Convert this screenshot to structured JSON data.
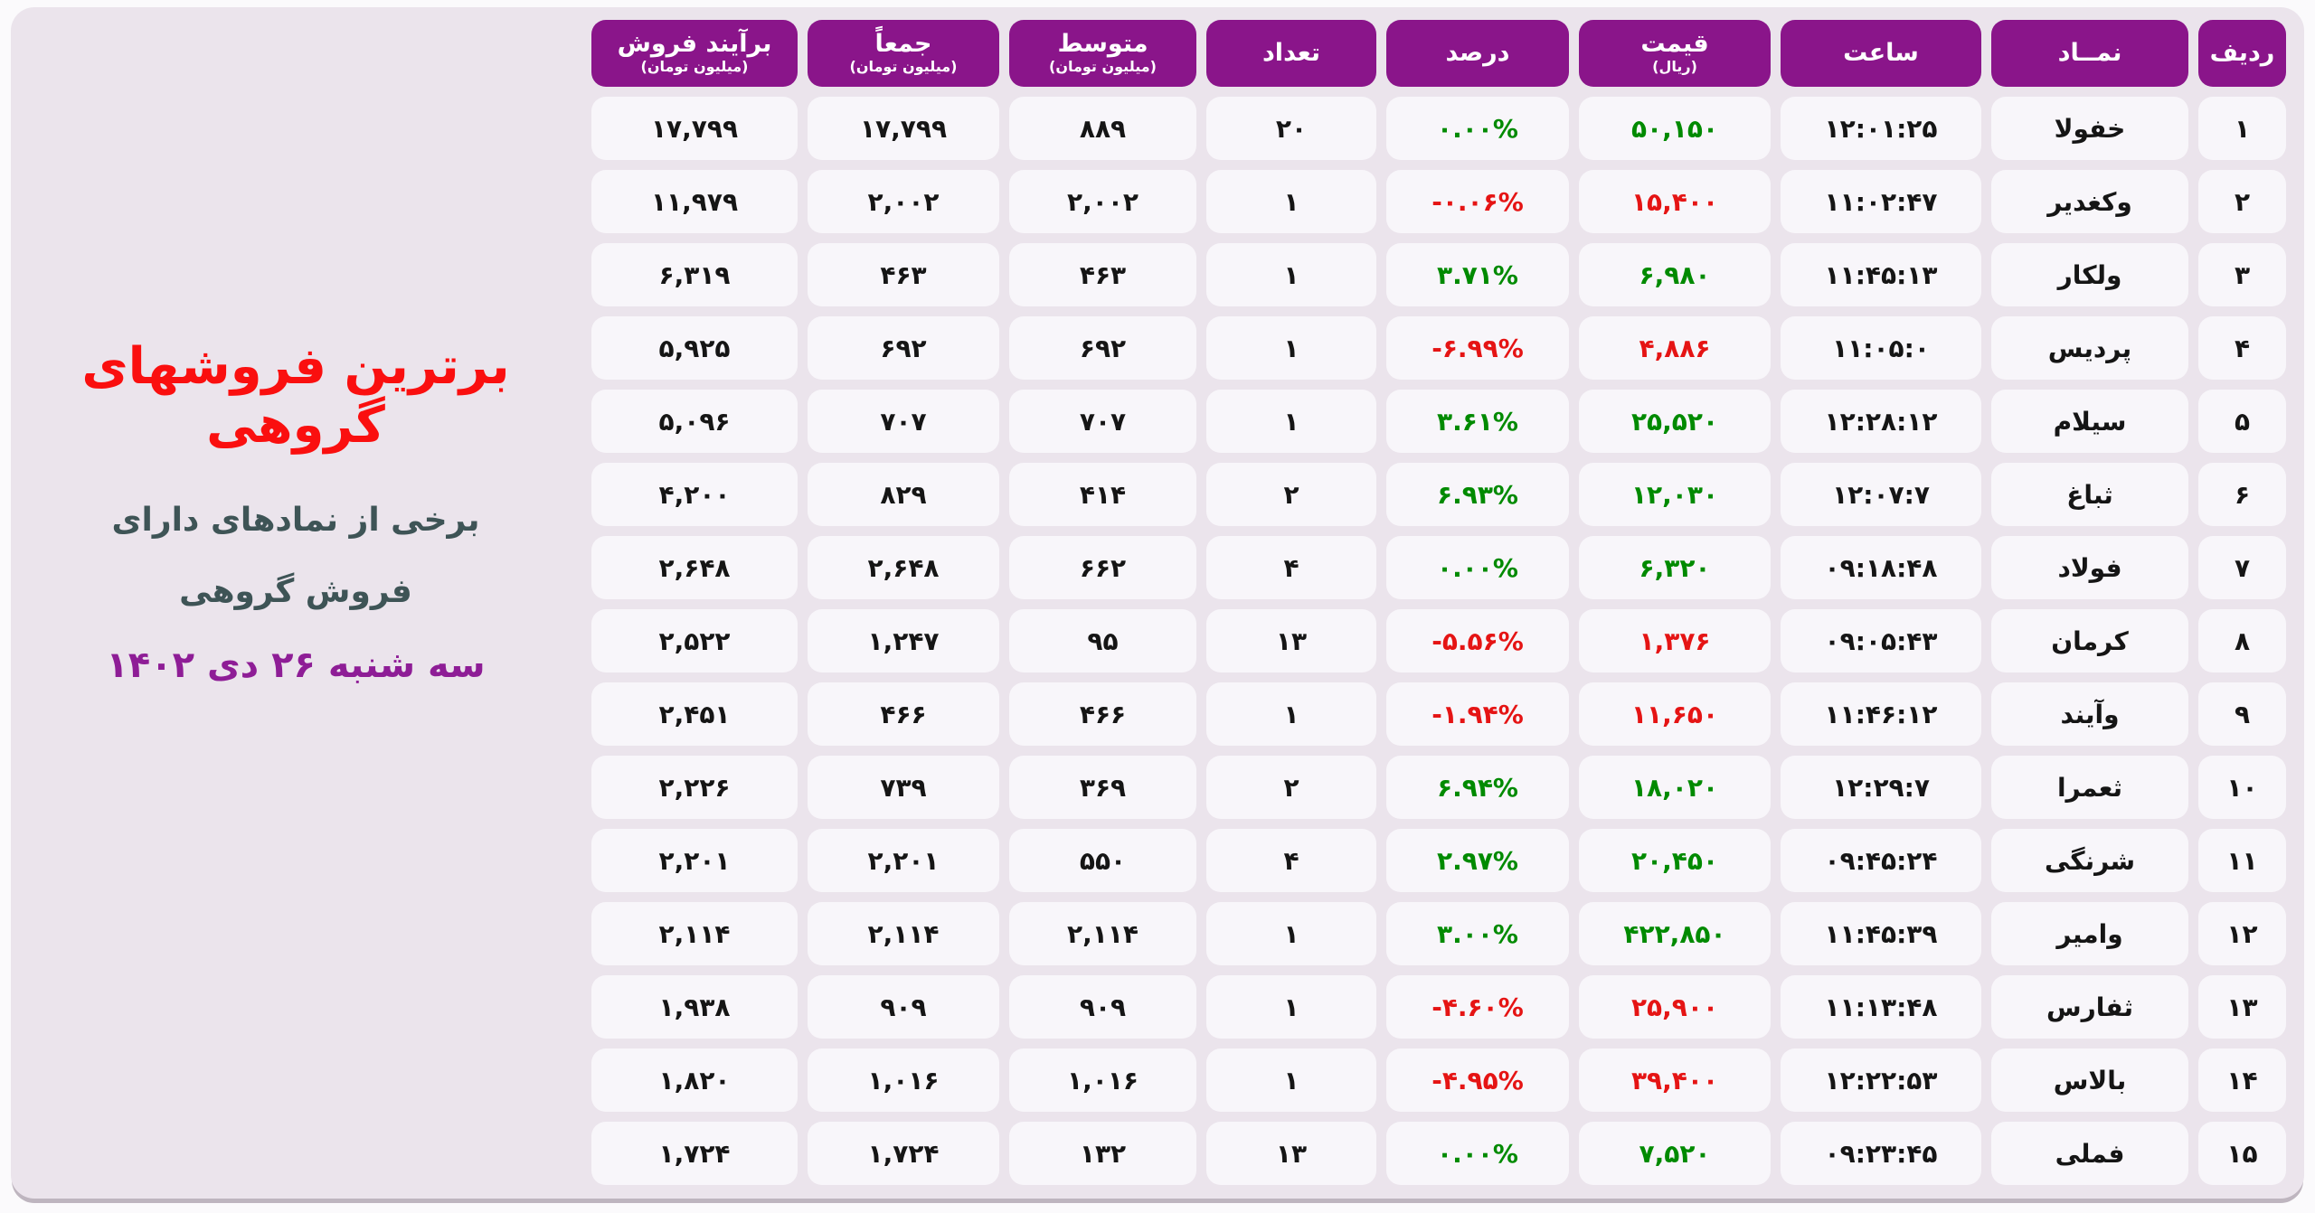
{
  "title_block": {
    "title": "برترین فروشهای گروهی",
    "subtitle_lines": [
      "برخی از نمادهای دارای",
      "فروش گروهی"
    ],
    "date": "سه شنبه ۲۶ دی ۱۴۰۲"
  },
  "colors": {
    "header_purple": "#8a158a",
    "green": "#008a00",
    "red": "#e51414",
    "board_bg": "#ebe4ec",
    "cell_bg": "#f8f6fa",
    "ink": "#151515",
    "title_red": "#fa0f0f",
    "subtitle_teal": "#3e5456",
    "date_purple": "#8e1d96"
  },
  "chart_data": {
    "type": "table",
    "title": "برترین فروشهای گروهی",
    "columns": [
      {
        "key": "radif",
        "label": "ردیف",
        "sub": ""
      },
      {
        "key": "namad",
        "label": "نمــاد",
        "sub": ""
      },
      {
        "key": "saat",
        "label": "ساعت",
        "sub": ""
      },
      {
        "key": "gheymat",
        "label": "قیمت",
        "sub": "(ریال)"
      },
      {
        "key": "darsad",
        "label": "درصد",
        "sub": ""
      },
      {
        "key": "tedad",
        "label": "تعداد",
        "sub": ""
      },
      {
        "key": "motavaset",
        "label": "متوسط",
        "sub": "(میلیون تومان)"
      },
      {
        "key": "jaman",
        "label": "جمعاً",
        "sub": "(میلیون تومان)"
      },
      {
        "key": "baraiand",
        "label": "برآیند فروش",
        "sub": "(میلیون تومان)"
      }
    ],
    "rows": [
      {
        "radif": "۱",
        "namad": "خفولا",
        "saat": "۱۲:۰۱:۲۵",
        "gheymat": "۵۰,۱۵۰",
        "price_trend": "up",
        "darsad": "۰.۰۰%",
        "percent_trend": "up",
        "tedad": "۲۰",
        "motavaset": "۸۸۹",
        "jaman": "۱۷,۷۹۹",
        "baraiand": "۱۷,۷۹۹"
      },
      {
        "radif": "۲",
        "namad": "وکغدیر",
        "saat": "۱۱:۰۲:۴۷",
        "gheymat": "۱۵,۴۰۰",
        "price_trend": "down",
        "darsad": "-۰.۰۶%",
        "percent_trend": "down",
        "tedad": "۱",
        "motavaset": "۲,۰۰۲",
        "jaman": "۲,۰۰۲",
        "baraiand": "۱۱,۹۷۹"
      },
      {
        "radif": "۳",
        "namad": "ولکار",
        "saat": "۱۱:۴۵:۱۳",
        "gheymat": "۶,۹۸۰",
        "price_trend": "up",
        "darsad": "۳.۷۱%",
        "percent_trend": "up",
        "tedad": "۱",
        "motavaset": "۴۶۳",
        "jaman": "۴۶۳",
        "baraiand": "۶,۳۱۹"
      },
      {
        "radif": "۴",
        "namad": "پردیس",
        "saat": "۱۱:۰۵:۰",
        "gheymat": "۴,۸۸۶",
        "price_trend": "down",
        "darsad": "-۶.۹۹%",
        "percent_trend": "down",
        "tedad": "۱",
        "motavaset": "۶۹۲",
        "jaman": "۶۹۲",
        "baraiand": "۵,۹۲۵"
      },
      {
        "radif": "۵",
        "namad": "سیلام",
        "saat": "۱۲:۲۸:۱۲",
        "gheymat": "۲۵,۵۲۰",
        "price_trend": "up",
        "darsad": "۳.۶۱%",
        "percent_trend": "up",
        "tedad": "۱",
        "motavaset": "۷۰۷",
        "jaman": "۷۰۷",
        "baraiand": "۵,۰۹۶"
      },
      {
        "radif": "۶",
        "namad": "ثباغ",
        "saat": "۱۲:۰۷:۷",
        "gheymat": "۱۲,۰۳۰",
        "price_trend": "up",
        "darsad": "۶.۹۳%",
        "percent_trend": "up",
        "tedad": "۲",
        "motavaset": "۴۱۴",
        "jaman": "۸۲۹",
        "baraiand": "۴,۲۰۰"
      },
      {
        "radif": "۷",
        "namad": "فولاد",
        "saat": "۰۹:۱۸:۴۸",
        "gheymat": "۶,۳۲۰",
        "price_trend": "up",
        "darsad": "۰.۰۰%",
        "percent_trend": "up",
        "tedad": "۴",
        "motavaset": "۶۶۲",
        "jaman": "۲,۶۴۸",
        "baraiand": "۲,۶۴۸"
      },
      {
        "radif": "۸",
        "namad": "کرمان",
        "saat": "۰۹:۰۵:۴۳",
        "gheymat": "۱,۳۷۶",
        "price_trend": "down",
        "darsad": "-۵.۵۶%",
        "percent_trend": "down",
        "tedad": "۱۳",
        "motavaset": "۹۵",
        "jaman": "۱,۲۴۷",
        "baraiand": "۲,۵۲۲"
      },
      {
        "radif": "۹",
        "namad": "وآیند",
        "saat": "۱۱:۴۶:۱۲",
        "gheymat": "۱۱,۶۵۰",
        "price_trend": "down",
        "darsad": "-۱.۹۴%",
        "percent_trend": "down",
        "tedad": "۱",
        "motavaset": "۴۶۶",
        "jaman": "۴۶۶",
        "baraiand": "۲,۴۵۱"
      },
      {
        "radif": "۱۰",
        "namad": "ثعمرا",
        "saat": "۱۲:۲۹:۷",
        "gheymat": "۱۸,۰۲۰",
        "price_trend": "up",
        "darsad": "۶.۹۴%",
        "percent_trend": "up",
        "tedad": "۲",
        "motavaset": "۳۶۹",
        "jaman": "۷۳۹",
        "baraiand": "۲,۲۲۶"
      },
      {
        "radif": "۱۱",
        "namad": "شرنگی",
        "saat": "۰۹:۴۵:۲۴",
        "gheymat": "۲۰,۴۵۰",
        "price_trend": "up",
        "darsad": "۲.۹۷%",
        "percent_trend": "up",
        "tedad": "۴",
        "motavaset": "۵۵۰",
        "jaman": "۲,۲۰۱",
        "baraiand": "۲,۲۰۱"
      },
      {
        "radif": "۱۲",
        "namad": "وامیر",
        "saat": "۱۱:۴۵:۳۹",
        "gheymat": "۴۲۲,۸۵۰",
        "price_trend": "up",
        "darsad": "۳.۰۰%",
        "percent_trend": "up",
        "tedad": "۱",
        "motavaset": "۲,۱۱۴",
        "jaman": "۲,۱۱۴",
        "baraiand": "۲,۱۱۴"
      },
      {
        "radif": "۱۳",
        "namad": "ثفارس",
        "saat": "۱۱:۱۳:۴۸",
        "gheymat": "۲۵,۹۰۰",
        "price_trend": "down",
        "darsad": "-۴.۶۰%",
        "percent_trend": "down",
        "tedad": "۱",
        "motavaset": "۹۰۹",
        "jaman": "۹۰۹",
        "baraiand": "۱,۹۳۸"
      },
      {
        "radif": "۱۴",
        "namad": "بالاس",
        "saat": "۱۲:۲۲:۵۳",
        "gheymat": "۳۹,۴۰۰",
        "price_trend": "down",
        "darsad": "-۴.۹۵%",
        "percent_trend": "down",
        "tedad": "۱",
        "motavaset": "۱,۰۱۶",
        "jaman": "۱,۰۱۶",
        "baraiand": "۱,۸۲۰"
      },
      {
        "radif": "۱۵",
        "namad": "فملی",
        "saat": "۰۹:۲۳:۴۵",
        "gheymat": "۷,۵۲۰",
        "price_trend": "up",
        "darsad": "۰.۰۰%",
        "percent_trend": "up",
        "tedad": "۱۳",
        "motavaset": "۱۳۲",
        "jaman": "۱,۷۲۴",
        "baraiand": "۱,۷۲۴"
      }
    ]
  }
}
